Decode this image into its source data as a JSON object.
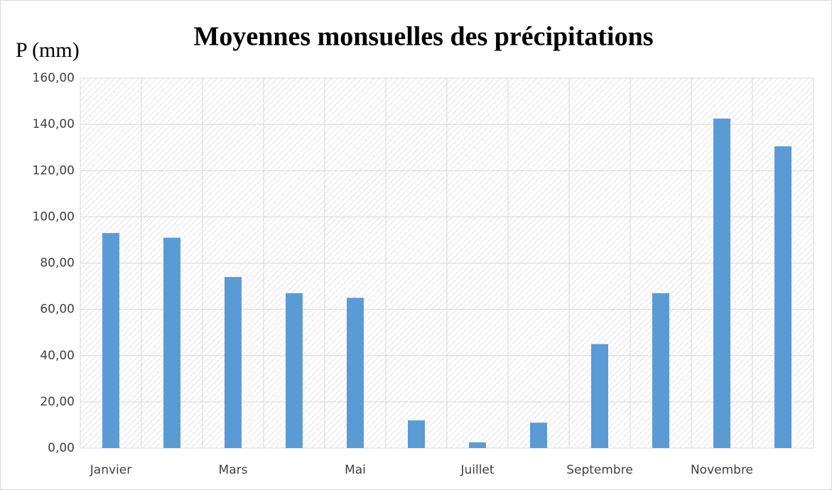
{
  "chart_data": {
    "type": "bar",
    "title": "Moyennes monsuelles des précipitations",
    "y_label": "P (mm)",
    "categories": [
      "Janvier",
      null,
      "Mars",
      null,
      "Mai",
      null,
      "Juillet",
      null,
      "Septembre",
      null,
      "Novembre",
      null
    ],
    "values": [
      93,
      91,
      74,
      67,
      65,
      12,
      2.5,
      11,
      45,
      67,
      142.5,
      130.5
    ],
    "color": "#5b9bd5",
    "ylim": [
      0,
      160
    ],
    "yticks": [
      {
        "value": 0,
        "label": "0,00"
      },
      {
        "value": 20,
        "label": "20,00"
      },
      {
        "value": 40,
        "label": "40,00"
      },
      {
        "value": 60,
        "label": "60,00"
      },
      {
        "value": 80,
        "label": "80,00"
      },
      {
        "value": 100,
        "label": "100,00"
      },
      {
        "value": 120,
        "label": "120,00"
      },
      {
        "value": 140,
        "label": "140,00"
      },
      {
        "value": 160,
        "label": "160,00"
      }
    ],
    "grid": true
  }
}
